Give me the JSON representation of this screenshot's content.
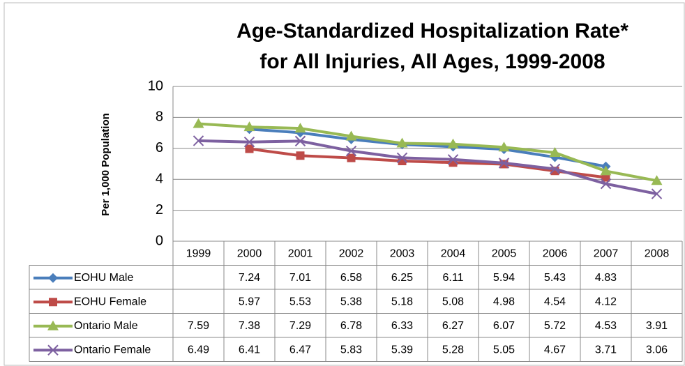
{
  "chart_data": {
    "type": "line",
    "title": [
      "Age-Standardized Hospitalization Rate*",
      "for All Injuries, All Ages, 1999-2008"
    ],
    "y_label": "Per 1,000 Population",
    "categories": [
      "1999",
      "2000",
      "2001",
      "2002",
      "2003",
      "2004",
      "2005",
      "2006",
      "2007",
      "2008"
    ],
    "series": [
      {
        "name": "EOHU Male",
        "color": "#4a7ebb",
        "marker": "diamond",
        "values": [
          null,
          7.24,
          7.01,
          6.58,
          6.25,
          6.11,
          5.94,
          5.43,
          4.83,
          null
        ]
      },
      {
        "name": "EOHU Female",
        "color": "#be4b48",
        "marker": "square",
        "values": [
          null,
          5.97,
          5.53,
          5.38,
          5.18,
          5.08,
          4.98,
          4.54,
          4.12,
          null
        ]
      },
      {
        "name": "Ontario Male",
        "color": "#98b954",
        "marker": "triangle",
        "values": [
          7.59,
          7.38,
          7.29,
          6.78,
          6.33,
          6.27,
          6.07,
          5.72,
          4.53,
          3.91
        ]
      },
      {
        "name": "Ontario Female",
        "color": "#7d60a0",
        "marker": "x",
        "values": [
          6.49,
          6.41,
          6.47,
          5.83,
          5.39,
          5.28,
          5.05,
          4.67,
          3.71,
          3.06
        ]
      }
    ],
    "ylim": [
      0,
      10
    ],
    "yticks": [
      0,
      2,
      4,
      6,
      8,
      10
    ],
    "grid": true,
    "data_table": true
  }
}
